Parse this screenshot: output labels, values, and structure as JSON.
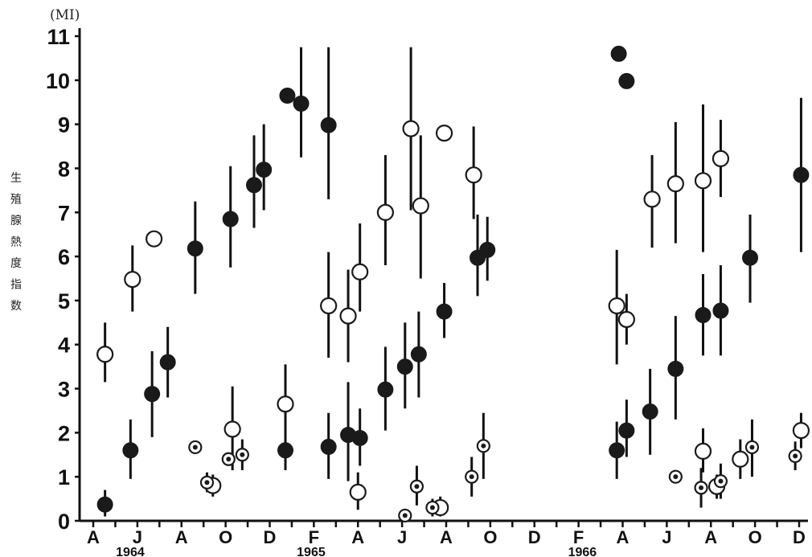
{
  "chart_data": {
    "type": "scatter",
    "title": "",
    "ylabel_unit": "(MI)",
    "ylabel_chars": [
      "生",
      "殖",
      "腺",
      "熱",
      "度",
      "指",
      "数"
    ],
    "ylim": [
      0,
      11
    ],
    "y_ticks": [
      "0",
      "1",
      "2",
      "3",
      "4",
      "5",
      "6",
      "7",
      "8",
      "9",
      "10",
      "11"
    ],
    "x_range_months": [
      0,
      32
    ],
    "x_ticks": [
      {
        "pos": 0,
        "label": "A"
      },
      {
        "pos": 2,
        "label": "J"
      },
      {
        "pos": 4,
        "label": "A"
      },
      {
        "pos": 6,
        "label": "O"
      },
      {
        "pos": 8,
        "label": "D"
      },
      {
        "pos": 10,
        "label": "F"
      },
      {
        "pos": 12,
        "label": "A"
      },
      {
        "pos": 14,
        "label": "J"
      },
      {
        "pos": 16,
        "label": "A"
      },
      {
        "pos": 18,
        "label": "O"
      },
      {
        "pos": 20,
        "label": "D"
      },
      {
        "pos": 22,
        "label": "F"
      },
      {
        "pos": 24,
        "label": "A"
      },
      {
        "pos": 26,
        "label": "J"
      },
      {
        "pos": 28,
        "label": "A"
      },
      {
        "pos": 30,
        "label": "O"
      },
      {
        "pos": 32,
        "label": "D"
      }
    ],
    "years": [
      {
        "pos": 0.8,
        "label": "1964"
      },
      {
        "pos": 9.0,
        "label": "1965"
      },
      {
        "pos": 21.3,
        "label": "1966"
      }
    ],
    "series": [
      {
        "marker": "filled",
        "points": [
          {
            "x": 0.6,
            "y": 0.37,
            "lo": 0.1,
            "hi": 0.7
          },
          {
            "x": 1.9,
            "y": 1.6,
            "lo": 0.95,
            "hi": 2.3
          },
          {
            "x": 3.0,
            "y": 2.88,
            "lo": 1.9,
            "hi": 3.85
          },
          {
            "x": 3.8,
            "y": 3.6,
            "lo": 2.8,
            "hi": 4.4
          },
          {
            "x": 5.2,
            "y": 6.18,
            "lo": 5.15,
            "hi": 7.25
          },
          {
            "x": 7.0,
            "y": 6.85,
            "lo": 5.75,
            "hi": 8.05
          },
          {
            "x": 8.2,
            "y": 7.62,
            "lo": 6.65,
            "hi": 8.75
          },
          {
            "x": 8.7,
            "y": 7.97,
            "lo": 7.05,
            "hi": 9.0
          },
          {
            "x": 9.9,
            "y": 9.65
          },
          {
            "x": 10.6,
            "y": 9.47,
            "lo": 8.25,
            "hi": 10.75
          },
          {
            "x": 12.0,
            "y": 8.98,
            "lo": 7.3,
            "hi": 10.75
          },
          {
            "x": 9.8,
            "y": 1.6,
            "lo": 1.15,
            "hi": 2.1
          },
          {
            "x": 12.0,
            "y": 1.68,
            "lo": 0.95,
            "hi": 2.45
          },
          {
            "x": 13.0,
            "y": 1.95,
            "lo": 0.9,
            "hi": 3.15
          },
          {
            "x": 13.6,
            "y": 1.88,
            "lo": 1.25,
            "hi": 2.55
          },
          {
            "x": 14.9,
            "y": 2.98,
            "lo": 2.05,
            "hi": 3.95
          },
          {
            "x": 15.9,
            "y": 3.5,
            "lo": 2.55,
            "hi": 4.5
          },
          {
            "x": 16.6,
            "y": 3.78,
            "lo": 2.8,
            "hi": 4.75
          },
          {
            "x": 17.9,
            "y": 4.75,
            "lo": 4.15,
            "hi": 5.4
          },
          {
            "x": 19.6,
            "y": 5.97,
            "lo": 5.1,
            "hi": 6.95
          },
          {
            "x": 20.1,
            "y": 6.15,
            "lo": 5.45,
            "hi": 6.9
          },
          {
            "x": 26.8,
            "y": 10.6
          },
          {
            "x": 27.2,
            "y": 9.98
          },
          {
            "x": 26.7,
            "y": 1.6,
            "lo": 0.95,
            "hi": 2.25
          },
          {
            "x": 27.2,
            "y": 2.05,
            "lo": 1.45,
            "hi": 2.75
          },
          {
            "x": 28.4,
            "y": 2.48,
            "lo": 1.5,
            "hi": 3.45
          },
          {
            "x": 29.7,
            "y": 3.45,
            "lo": 2.3,
            "hi": 4.65
          },
          {
            "x": 31.1,
            "y": 4.67,
            "lo": 3.75,
            "hi": 5.6
          },
          {
            "x": 32.0,
            "y": 4.77,
            "lo": 3.75,
            "hi": 5.8
          },
          {
            "x": 33.5,
            "y": 5.97,
            "lo": 4.95,
            "hi": 6.95
          },
          {
            "x": 36.1,
            "y": 7.85,
            "lo": 6.1,
            "hi": 9.6
          }
        ]
      },
      {
        "marker": "open",
        "points": [
          {
            "x": 0.6,
            "y": 3.78,
            "lo": 3.15,
            "hi": 4.5
          },
          {
            "x": 2.0,
            "y": 5.48,
            "lo": 4.75,
            "hi": 6.25
          },
          {
            "x": 3.1,
            "y": 6.4
          },
          {
            "x": 6.1,
            "y": 0.8,
            "lo": 0.55,
            "hi": 1.05
          },
          {
            "x": 7.1,
            "y": 2.08,
            "lo": 1.15,
            "hi": 3.05
          },
          {
            "x": 9.8,
            "y": 2.65,
            "lo": 1.8,
            "hi": 3.55
          },
          {
            "x": 12.0,
            "y": 4.88,
            "lo": 3.7,
            "hi": 6.1
          },
          {
            "x": 13.0,
            "y": 4.65,
            "lo": 3.6,
            "hi": 5.7
          },
          {
            "x": 13.6,
            "y": 5.65,
            "lo": 4.75,
            "hi": 6.75
          },
          {
            "x": 13.5,
            "y": 0.65,
            "lo": 0.25,
            "hi": 1.1
          },
          {
            "x": 14.9,
            "y": 7.0,
            "lo": 5.8,
            "hi": 8.3
          },
          {
            "x": 16.2,
            "y": 8.9,
            "lo": 7.05,
            "hi": 10.75
          },
          {
            "x": 16.7,
            "y": 7.15,
            "lo": 5.5,
            "hi": 8.75
          },
          {
            "x": 17.9,
            "y": 8.8
          },
          {
            "x": 17.7,
            "y": 0.3,
            "lo": 0.1,
            "hi": 0.55
          },
          {
            "x": 19.4,
            "y": 7.85,
            "lo": 6.85,
            "hi": 8.95
          },
          {
            "x": 26.7,
            "y": 4.88,
            "lo": 3.55,
            "hi": 6.15
          },
          {
            "x": 27.2,
            "y": 4.57,
            "lo": 4.0,
            "hi": 5.15
          },
          {
            "x": 28.5,
            "y": 7.3,
            "lo": 6.2,
            "hi": 8.3
          },
          {
            "x": 29.7,
            "y": 7.65,
            "lo": 6.3,
            "hi": 9.05
          },
          {
            "x": 31.1,
            "y": 7.72,
            "lo": 6.1,
            "hi": 9.45
          },
          {
            "x": 31.1,
            "y": 1.58,
            "lo": 1.1,
            "hi": 2.1
          },
          {
            "x": 32.0,
            "y": 8.22,
            "lo": 7.35,
            "hi": 9.1
          },
          {
            "x": 31.8,
            "y": 0.78,
            "lo": 0.5,
            "hi": 1.05
          },
          {
            "x": 33.0,
            "y": 1.4,
            "lo": 0.95,
            "hi": 1.85
          },
          {
            "x": 36.1,
            "y": 2.05,
            "lo": 1.65,
            "hi": 2.45
          }
        ]
      },
      {
        "marker": "dotted",
        "points": [
          {
            "x": 5.2,
            "y": 1.67
          },
          {
            "x": 5.8,
            "y": 0.87,
            "lo": 0.65,
            "hi": 1.1
          },
          {
            "x": 6.9,
            "y": 1.4
          },
          {
            "x": 7.6,
            "y": 1.5,
            "lo": 1.15,
            "hi": 1.85
          },
          {
            "x": 15.9,
            "y": 0.12
          },
          {
            "x": 16.5,
            "y": 0.78,
            "lo": 0.35,
            "hi": 1.25
          },
          {
            "x": 17.3,
            "y": 0.3,
            "lo": 0.1,
            "hi": 0.5
          },
          {
            "x": 19.3,
            "y": 1.0,
            "lo": 0.55,
            "hi": 1.45
          },
          {
            "x": 19.9,
            "y": 1.7,
            "lo": 0.95,
            "hi": 2.45
          },
          {
            "x": 29.7,
            "y": 1.0
          },
          {
            "x": 31.0,
            "y": 0.75,
            "lo": 0.3,
            "hi": 1.2
          },
          {
            "x": 32.0,
            "y": 0.9,
            "lo": 0.5,
            "hi": 1.3
          },
          {
            "x": 33.6,
            "y": 1.67,
            "lo": 1.0,
            "hi": 2.3
          },
          {
            "x": 35.8,
            "y": 1.47,
            "lo": 1.15,
            "hi": 1.8
          }
        ]
      }
    ]
  }
}
